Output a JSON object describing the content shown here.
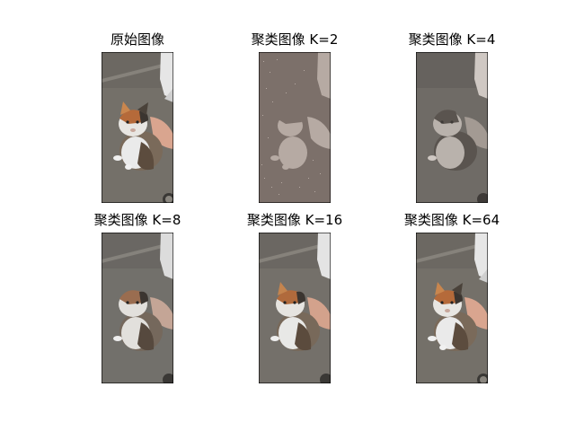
{
  "figure": {
    "panels": [
      {
        "title": "原始图像",
        "image": "photo of a calico kitten on pavement with a hand petting it",
        "k": null
      },
      {
        "title": "聚类图像 K=2",
        "image": "kitten photo color-quantized to 2 colors",
        "k": 2
      },
      {
        "title": "聚类图像 K=4",
        "image": "kitten photo color-quantized to 4 colors",
        "k": 4
      },
      {
        "title": "聚类图像 K=8",
        "image": "kitten photo color-quantized to 8 colors",
        "k": 8
      },
      {
        "title": "聚类图像 K=16",
        "image": "kitten photo color-quantized to 16 colors",
        "k": 16
      },
      {
        "title": "聚类图像 K=64",
        "image": "kitten photo color-quantized to 64 colors",
        "k": 64
      }
    ]
  }
}
